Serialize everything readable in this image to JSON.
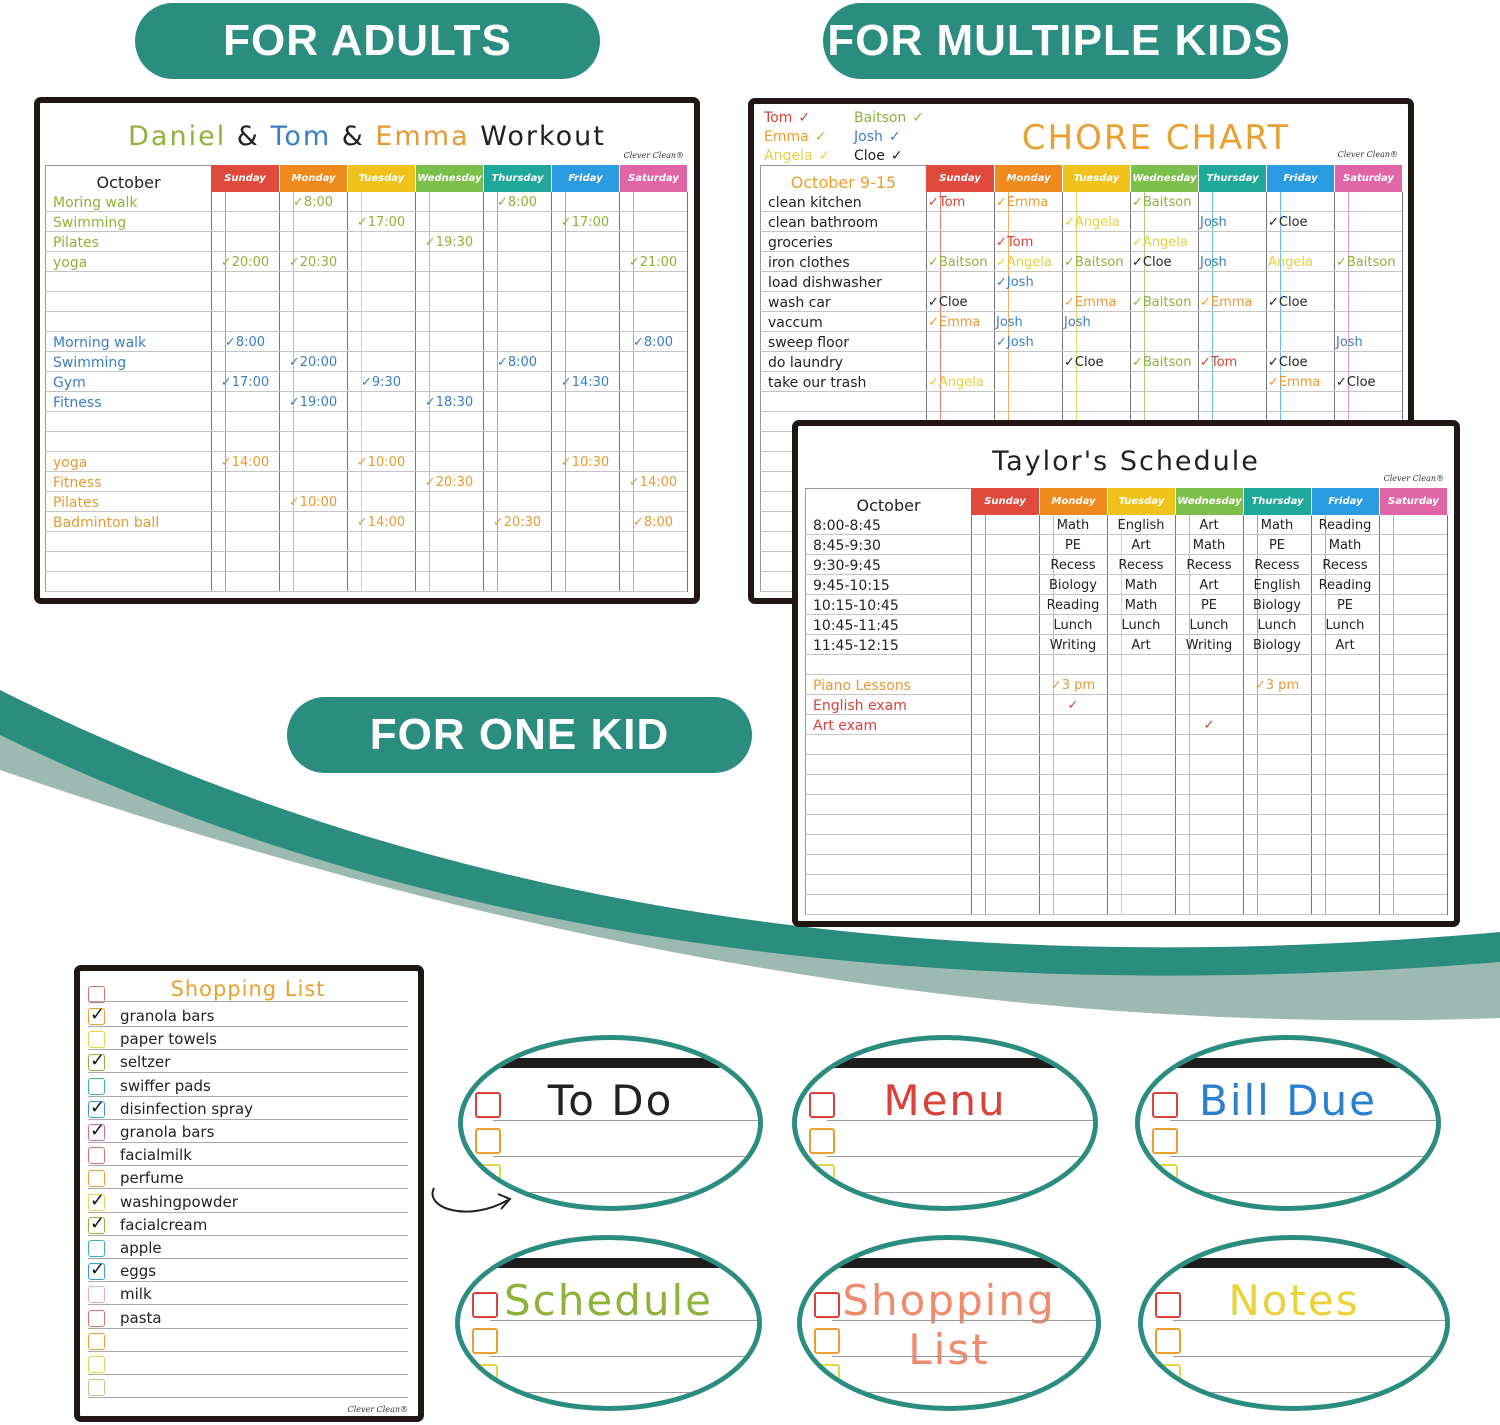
{
  "banners": {
    "adults": "FOR ADULTS",
    "multiple_kids": "FOR MULTIPLE KIDS",
    "one_kid": "FOR ONE KID"
  },
  "colors": {
    "teal": "#2b8c80",
    "teal_light": "#9dbab2",
    "frame": "#211614"
  },
  "brand": "Clever Clean®",
  "days": [
    "Sunday",
    "Monday",
    "Tuesday",
    "Wednesday",
    "Thursday",
    "Friday",
    "Saturday"
  ],
  "day_colors": [
    "#e04a3c",
    "#ef8a1f",
    "#efc21c",
    "#7cbf4a",
    "#1fa89a",
    "#2a9be0",
    "#e066a8"
  ],
  "workout": {
    "title_parts": [
      {
        "text": "Daniel",
        "color": "#8db33a"
      },
      {
        "text": " & ",
        "color": "#222"
      },
      {
        "text": "Tom",
        "color": "#3a7fc0"
      },
      {
        "text": " & ",
        "color": "#222"
      },
      {
        "text": "Emma",
        "color": "#e59a33"
      },
      {
        "text": " Workout",
        "color": "#222"
      }
    ],
    "month": "October",
    "rows": [
      {
        "label": "Moring walk",
        "color": "#8db33a",
        "cells": [
          "",
          "✓8:00",
          "",
          "",
          "✓8:00",
          "",
          ""
        ]
      },
      {
        "label": "Swimming",
        "color": "#8db33a",
        "cells": [
          "",
          "",
          "✓17:00",
          "",
          "",
          "✓17:00",
          ""
        ]
      },
      {
        "label": "Pilates",
        "color": "#8db33a",
        "cells": [
          "",
          "",
          "",
          "✓19:30",
          "",
          "",
          ""
        ]
      },
      {
        "label": "yoga",
        "color": "#8db33a",
        "cells": [
          "✓20:00",
          "✓20:30",
          "",
          "",
          "",
          "",
          "✓21:00"
        ]
      },
      null,
      null,
      null,
      {
        "label": "Morning walk",
        "color": "#3a7fc0",
        "cells": [
          "✓8:00",
          "",
          "",
          "",
          "",
          "",
          "✓8:00"
        ]
      },
      {
        "label": "Swimming",
        "color": "#3a7fc0",
        "cells": [
          "",
          "✓20:00",
          "",
          "",
          "✓8:00",
          "",
          ""
        ]
      },
      {
        "label": "Gym",
        "color": "#3a7fc0",
        "cells": [
          "✓17:00",
          "",
          "✓9:30",
          "",
          "",
          "✓14:30",
          ""
        ]
      },
      {
        "label": "Fitness",
        "color": "#3a7fc0",
        "cells": [
          "",
          "✓19:00",
          "",
          "✓18:30",
          "",
          "",
          ""
        ]
      },
      null,
      null,
      {
        "label": "yoga",
        "color": "#e59a33",
        "cells": [
          "✓14:00",
          "",
          "✓10:00",
          "",
          "",
          "✓10:30",
          ""
        ]
      },
      {
        "label": "Fitness",
        "color": "#e59a33",
        "cells": [
          "",
          "",
          "",
          "✓20:30",
          "",
          "",
          "✓14:00"
        ]
      },
      {
        "label": "Pilates",
        "color": "#e59a33",
        "cells": [
          "",
          "✓10:00",
          "",
          "",
          "",
          "",
          ""
        ]
      },
      {
        "label": "Badminton ball",
        "color": "#e59a33",
        "cells": [
          "",
          "",
          "✓14:00",
          "",
          "✓20:30",
          "",
          "✓8:00"
        ]
      }
    ]
  },
  "chore": {
    "title": "CHORE CHART",
    "title_color": "#e8a030",
    "month": "October 9-15",
    "kids": [
      {
        "name": "Tom",
        "color": "#d9413a"
      },
      {
        "name": "Baitson",
        "color": "#8db33a"
      },
      {
        "name": "Emma",
        "color": "#e89a30"
      },
      {
        "name": "Josh",
        "color": "#3a7fc0"
      },
      {
        "name": "Angela",
        "color": "#e2d040"
      },
      {
        "name": "Cloe",
        "color": "#222222"
      }
    ],
    "rows": [
      {
        "label": "clean kitchen",
        "cells": [
          "✓Tom",
          "✓Emma",
          "",
          "✓Baitson",
          "",
          "",
          ""
        ]
      },
      {
        "label": "clean bathroom",
        "cells": [
          "",
          "",
          "✓Angela",
          "",
          "Josh",
          "✓Cloe",
          ""
        ]
      },
      {
        "label": "groceries",
        "cells": [
          "",
          "✓Tom",
          "",
          "✓Angela",
          "",
          "",
          ""
        ]
      },
      {
        "label": "iron clothes",
        "cells": [
          "✓Baitson",
          "✓Angela",
          "✓Baitson",
          "✓Cloe",
          "Josh",
          "Angela",
          "✓Baitson"
        ]
      },
      {
        "label": "load dishwasher",
        "cells": [
          "",
          "✓Josh",
          "",
          "",
          "",
          "",
          ""
        ]
      },
      {
        "label": "wash car",
        "cells": [
          "✓Cloe",
          "",
          "✓Emma",
          "✓Baitson",
          "✓Emma",
          "✓Cloe",
          ""
        ]
      },
      {
        "label": "vaccum",
        "cells": [
          "✓Emma",
          "Josh",
          "Josh",
          "",
          "",
          "",
          ""
        ]
      },
      {
        "label": "sweep floor",
        "cells": [
          "",
          "✓Josh",
          "",
          "",
          "",
          "",
          "Josh"
        ]
      },
      {
        "label": "do laundry",
        "cells": [
          "",
          "",
          "✓Cloe",
          "✓Baitson",
          "✓Tom",
          "✓Cloe",
          ""
        ]
      },
      {
        "label": "take our trash",
        "cells": [
          "✓Angela",
          "",
          "",
          "",
          "",
          "✓Emma",
          "✓Cloe"
        ]
      }
    ]
  },
  "taylor": {
    "title": "Taylor's Schedule",
    "month": "October",
    "rows": [
      {
        "label": "8:00-8:45",
        "color": "#222",
        "cells": [
          "",
          "Math",
          "English",
          "Art",
          "Math",
          "Reading",
          ""
        ]
      },
      {
        "label": "8:45-9:30",
        "color": "#222",
        "cells": [
          "",
          "PE",
          "Art",
          "Math",
          "PE",
          "Math",
          ""
        ]
      },
      {
        "label": "9:30-9:45",
        "color": "#222",
        "cells": [
          "",
          "Recess",
          "Recess",
          "Recess",
          "Recess",
          "Recess",
          ""
        ]
      },
      {
        "label": "9:45-10:15",
        "color": "#222",
        "cells": [
          "",
          "Biology",
          "Math",
          "Art",
          "English",
          "Reading",
          ""
        ]
      },
      {
        "label": "10:15-10:45",
        "color": "#222",
        "cells": [
          "",
          "Reading",
          "Math",
          "PE",
          "Biology",
          "PE",
          ""
        ]
      },
      {
        "label": "10:45-11:45",
        "color": "#222",
        "cells": [
          "",
          "Lunch",
          "Lunch",
          "Lunch",
          "Lunch",
          "Lunch",
          ""
        ]
      },
      {
        "label": "11:45-12:15",
        "color": "#222",
        "cells": [
          "",
          "Writing",
          "Art",
          "Writing",
          "Biology",
          "Art",
          ""
        ]
      },
      null,
      {
        "label": "Piano Lessons",
        "color": "#e59a33",
        "cells": [
          "",
          "✓3 pm",
          "",
          "",
          "✓3 pm",
          "",
          ""
        ]
      },
      {
        "label": "English exam",
        "color": "#d9413a",
        "cells": [
          "",
          "✓",
          "",
          "",
          "",
          "",
          ""
        ]
      },
      {
        "label": "Art exam",
        "color": "#d9413a",
        "cells": [
          "",
          "",
          "",
          "✓",
          "",
          "",
          ""
        ]
      }
    ]
  },
  "shopping": {
    "title": "Shopping List",
    "title_color": "#e8a030",
    "title_box_color": "#d9736a",
    "items": [
      {
        "text": "granola bars",
        "checked": true,
        "box": "#e8a030"
      },
      {
        "text": "paper towels",
        "checked": false,
        "box": "#e8d24a"
      },
      {
        "text": "seltzer",
        "checked": true,
        "box": "#8db33a"
      },
      {
        "text": "swiffer pads",
        "checked": false,
        "box": "#3fb0b8"
      },
      {
        "text": "disinfection spray",
        "checked": true,
        "box": "#3a9fd0"
      },
      {
        "text": "granola bars",
        "checked": true,
        "box": "#d66aa8"
      },
      {
        "text": "facialmilk",
        "checked": false,
        "box": "#d9736a"
      },
      {
        "text": "perfume",
        "checked": false,
        "box": "#e8a030"
      },
      {
        "text": "washingpowder",
        "checked": true,
        "box": "#e8d24a"
      },
      {
        "text": "facialcream",
        "checked": true,
        "box": "#8db33a"
      },
      {
        "text": "apple",
        "checked": false,
        "box": "#3fb0b8"
      },
      {
        "text": "eggs",
        "checked": true,
        "box": "#3a9fd0"
      },
      {
        "text": "milk",
        "checked": false,
        "box": "#e6a6d0"
      },
      {
        "text": "pasta",
        "checked": false,
        "box": "#d9736a"
      },
      {
        "text": "",
        "checked": false,
        "box": "#e8a030"
      },
      {
        "text": "",
        "checked": false,
        "box": "#e8d24a"
      },
      {
        "text": "",
        "checked": false,
        "box": "#a8cf8a"
      }
    ]
  },
  "ovals": [
    {
      "title": "To Do",
      "color": "#222222"
    },
    {
      "title": "Menu",
      "color": "#d9413a"
    },
    {
      "title": "Bill Due",
      "color": "#2a7fd0"
    },
    {
      "title": "Schedule",
      "color": "#8db33a"
    },
    {
      "title": "Shopping List",
      "color": "#ef8a6a"
    },
    {
      "title": "Notes",
      "color": "#ecd23a"
    }
  ],
  "oval_box_colors": [
    "#d9413a",
    "#e8a030",
    "#e8d24a"
  ]
}
